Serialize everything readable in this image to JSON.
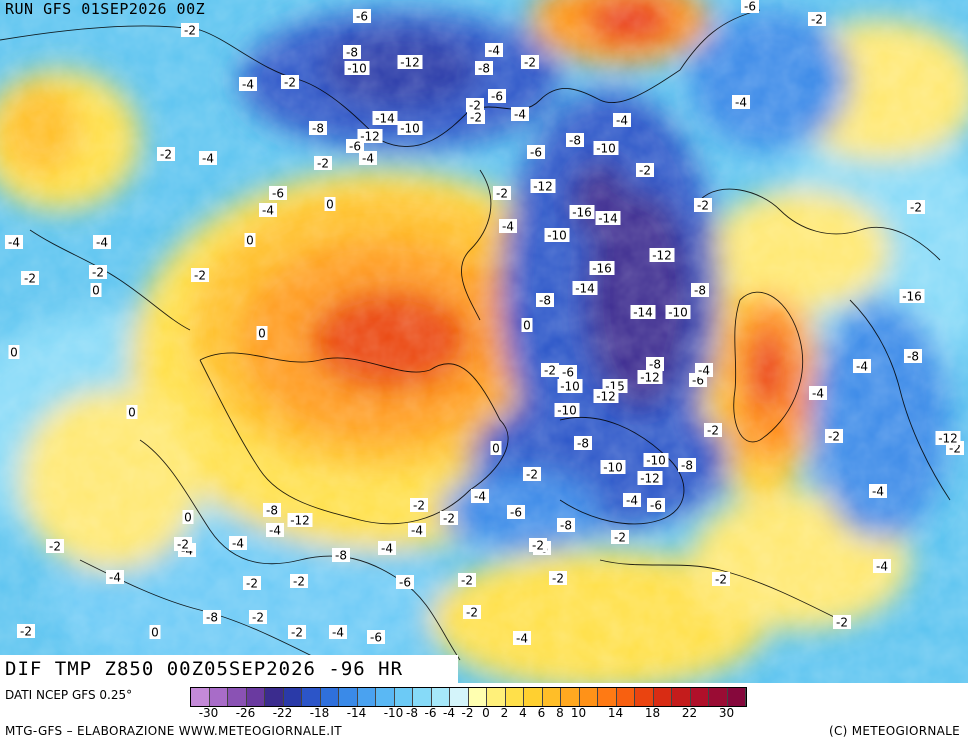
{
  "header": {
    "run": "RUN GFS 01SEP2026 00Z",
    "title": "DIF TMP Z850 00Z05SEP2026 -96 HR"
  },
  "legend": {
    "source": "DATI NCEP GFS 0.25°",
    "colors": [
      "#c48ad8",
      "#a86cc8",
      "#8a52b4",
      "#6a3aa0",
      "#3b2c8e",
      "#2a3aa8",
      "#2c55c8",
      "#2f70dc",
      "#3a8ae8",
      "#4aa2f0",
      "#5ab8f4",
      "#6ccaf6",
      "#86daf8",
      "#a6e8fa",
      "#d4f4fa",
      "#ffffb0",
      "#fff07a",
      "#ffe04a",
      "#ffd030",
      "#ffbe28",
      "#ffa820",
      "#ff9218",
      "#ff7a14",
      "#f86010",
      "#ea4410",
      "#d82c14",
      "#c41c1c",
      "#b0102a",
      "#9a0c34",
      "#86083c"
    ],
    "tick_labels": [
      "-30",
      "-26",
      "-22",
      "-18",
      "-14",
      "-10",
      "-8",
      "-6",
      "-4",
      "-2",
      "0",
      "2",
      "4",
      "6",
      "8",
      "10",
      "14",
      "18",
      "22",
      "30"
    ]
  },
  "footer": {
    "left": "MTG-GFS – ELABORAZIONE WWW.METEOGIORNALE.IT",
    "right": "(C) METEOGIORNALE"
  },
  "map_colors": {
    "base_blue": "#5cc4f0",
    "base_yellow": "#ffe04a",
    "warm": "#ff9a1a",
    "hot": "#e8341a",
    "cold": "#2a50c8",
    "very_cold": "#3a2c8c",
    "coast": "#000000"
  },
  "map_values": [
    {
      "v": "-6"
    },
    {
      "v": "-2"
    },
    {
      "v": "-8"
    },
    {
      "v": "-10"
    },
    {
      "v": "-12"
    },
    {
      "v": "-4"
    },
    {
      "v": "-8"
    },
    {
      "v": "-2"
    },
    {
      "v": "-4"
    },
    {
      "v": "-2"
    },
    {
      "v": "-2"
    },
    {
      "v": "-8"
    },
    {
      "v": "-14"
    },
    {
      "v": "-10"
    },
    {
      "v": "-12"
    },
    {
      "v": "-6"
    },
    {
      "v": "-4"
    },
    {
      "v": "-2"
    },
    {
      "v": "-4"
    },
    {
      "v": "-6"
    },
    {
      "v": "-4"
    },
    {
      "v": "0"
    },
    {
      "v": "-2"
    },
    {
      "v": "-4"
    },
    {
      "v": "0"
    },
    {
      "v": "-4"
    },
    {
      "v": "-2"
    },
    {
      "v": "-4"
    },
    {
      "v": "0"
    },
    {
      "v": "-2"
    },
    {
      "v": "0"
    },
    {
      "v": "-2"
    },
    {
      "v": "0"
    },
    {
      "v": "-2"
    },
    {
      "v": "0"
    },
    {
      "v": "0"
    },
    {
      "v": "-6"
    },
    {
      "v": "-4"
    },
    {
      "v": "-8"
    },
    {
      "v": "-10"
    },
    {
      "v": "-6"
    },
    {
      "v": "-2"
    },
    {
      "v": "-12"
    },
    {
      "v": "-2"
    },
    {
      "v": "-16"
    },
    {
      "v": "-14"
    },
    {
      "v": "-4"
    },
    {
      "v": "-10"
    },
    {
      "v": "-12"
    },
    {
      "v": "-16"
    },
    {
      "v": "-14"
    },
    {
      "v": "-8"
    },
    {
      "v": "0"
    },
    {
      "v": "-14"
    },
    {
      "v": "-10"
    },
    {
      "v": "-8"
    },
    {
      "v": "-2"
    },
    {
      "v": "-6"
    },
    {
      "v": "-10"
    },
    {
      "v": "-15"
    },
    {
      "v": "-12"
    },
    {
      "v": "-12"
    },
    {
      "v": "-6"
    },
    {
      "v": "-4"
    },
    {
      "v": "-8"
    },
    {
      "v": "-10"
    },
    {
      "v": "-8"
    },
    {
      "v": "-10"
    },
    {
      "v": "-12"
    },
    {
      "v": "-8"
    },
    {
      "v": "-2"
    },
    {
      "v": "-10"
    },
    {
      "v": "-6"
    },
    {
      "v": "-4"
    },
    {
      "v": "-6"
    },
    {
      "v": "-8"
    },
    {
      "v": "-6"
    },
    {
      "v": "-2"
    },
    {
      "v": "-2"
    },
    {
      "v": "-2"
    },
    {
      "v": "-4"
    },
    {
      "v": "-4"
    },
    {
      "v": "-6"
    },
    {
      "v": "-2"
    },
    {
      "v": "-8"
    },
    {
      "v": "-12"
    },
    {
      "v": "-4"
    },
    {
      "v": "-8"
    },
    {
      "v": "-4"
    },
    {
      "v": "-4"
    },
    {
      "v": "-2"
    },
    {
      "v": "-2"
    },
    {
      "v": "-2"
    },
    {
      "v": "-2"
    },
    {
      "v": "-4"
    },
    {
      "v": "-6"
    },
    {
      "v": "-8"
    },
    {
      "v": "-2"
    },
    {
      "v": "-4"
    },
    {
      "v": "-2"
    },
    {
      "v": "-2"
    },
    {
      "v": "-4"
    },
    {
      "v": "-4"
    },
    {
      "v": "-2"
    },
    {
      "v": "-2"
    },
    {
      "v": "-2"
    },
    {
      "v": "-12"
    },
    {
      "v": "-16"
    },
    {
      "v": "-8"
    },
    {
      "v": "-4"
    },
    {
      "v": "-4"
    },
    {
      "v": "-2"
    },
    {
      "v": "0"
    },
    {
      "v": "0"
    },
    {
      "v": "-2"
    },
    {
      "v": "-2"
    },
    {
      "v": "-4"
    },
    {
      "v": "-4"
    },
    {
      "v": "-2"
    },
    {
      "v": "0"
    },
    {
      "v": "-2"
    },
    {
      "v": "-2"
    },
    {
      "v": "-2"
    },
    {
      "v": "-4"
    },
    {
      "v": "-2"
    },
    {
      "v": "-6"
    }
  ]
}
